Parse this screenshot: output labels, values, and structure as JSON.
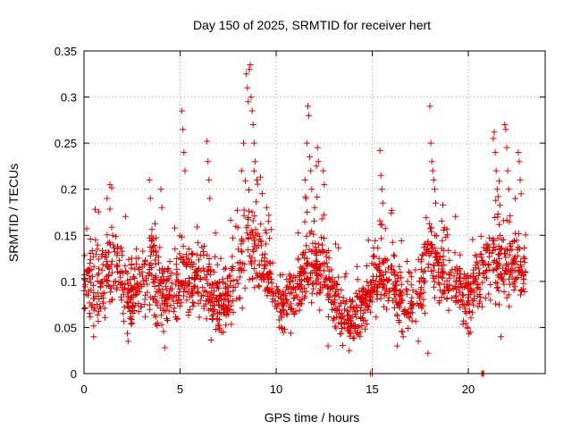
{
  "chart_data": {
    "type": "scatter",
    "title": "Day 150 of 2025, SRMTID for receiver hert",
    "xlabel": "GPS time / hours",
    "ylabel": "SRMTID / TECUs",
    "xlim": [
      0,
      24
    ],
    "ylim": [
      0,
      0.35
    ],
    "grid": true,
    "marker": "plus",
    "series_color": "#dd0000",
    "xticks": [
      {
        "v": 0,
        "label": "0"
      },
      {
        "v": 5,
        "label": "5"
      },
      {
        "v": 10,
        "label": "10"
      },
      {
        "v": 15,
        "label": "15"
      },
      {
        "v": 20,
        "label": "20"
      }
    ],
    "yticks": [
      {
        "v": 0,
        "label": "0"
      },
      {
        "v": 0.05,
        "label": "0.05"
      },
      {
        "v": 0.1,
        "label": "0.1"
      },
      {
        "v": 0.15,
        "label": "0.15"
      },
      {
        "v": 0.2,
        "label": "0.2"
      },
      {
        "v": 0.25,
        "label": "0.25"
      },
      {
        "v": 0.3,
        "label": "0.3"
      },
      {
        "v": 0.35,
        "label": "0.35"
      }
    ],
    "x_range_hours": [
      0,
      23
    ],
    "points_per_hour": 80,
    "seed": 150,
    "envelope": [
      [
        0.0,
        0.07,
        0.12
      ],
      [
        0.5,
        0.05,
        0.14
      ],
      [
        1.0,
        0.06,
        0.15
      ],
      [
        1.5,
        0.07,
        0.16
      ],
      [
        2.0,
        0.06,
        0.13
      ],
      [
        2.5,
        0.05,
        0.12
      ],
      [
        3.0,
        0.06,
        0.14
      ],
      [
        3.5,
        0.06,
        0.16
      ],
      [
        4.0,
        0.05,
        0.13
      ],
      [
        4.5,
        0.05,
        0.12
      ],
      [
        5.0,
        0.06,
        0.15
      ],
      [
        5.5,
        0.06,
        0.14
      ],
      [
        6.0,
        0.06,
        0.14
      ],
      [
        6.5,
        0.05,
        0.13
      ],
      [
        7.0,
        0.05,
        0.11
      ],
      [
        7.5,
        0.05,
        0.12
      ],
      [
        8.0,
        0.07,
        0.15
      ],
      [
        8.5,
        0.09,
        0.2
      ],
      [
        9.0,
        0.09,
        0.18
      ],
      [
        9.5,
        0.08,
        0.15
      ],
      [
        10.0,
        0.05,
        0.11
      ],
      [
        10.5,
        0.05,
        0.1
      ],
      [
        11.0,
        0.06,
        0.12
      ],
      [
        11.5,
        0.07,
        0.15
      ],
      [
        12.0,
        0.08,
        0.16
      ],
      [
        12.5,
        0.07,
        0.14
      ],
      [
        13.0,
        0.05,
        0.11
      ],
      [
        13.5,
        0.04,
        0.09
      ],
      [
        14.0,
        0.04,
        0.08
      ],
      [
        14.5,
        0.05,
        0.1
      ],
      [
        15.0,
        0.06,
        0.12
      ],
      [
        15.5,
        0.07,
        0.14
      ],
      [
        16.0,
        0.07,
        0.13
      ],
      [
        16.5,
        0.05,
        0.11
      ],
      [
        17.0,
        0.05,
        0.1
      ],
      [
        17.5,
        0.06,
        0.12
      ],
      [
        18.0,
        0.09,
        0.18
      ],
      [
        18.5,
        0.08,
        0.15
      ],
      [
        19.0,
        0.07,
        0.13
      ],
      [
        19.5,
        0.06,
        0.12
      ],
      [
        20.0,
        0.05,
        0.11
      ],
      [
        20.5,
        0.07,
        0.13
      ],
      [
        21.0,
        0.09,
        0.16
      ],
      [
        21.5,
        0.09,
        0.17
      ],
      [
        22.0,
        0.08,
        0.15
      ],
      [
        22.5,
        0.09,
        0.15
      ],
      [
        23.0,
        0.09,
        0.14
      ]
    ],
    "spikes": [
      {
        "x": 0.0,
        "y": 0.09
      },
      {
        "x": 0.6,
        "y": 0.145
      },
      {
        "x": 1.2,
        "y": 0.19
      },
      {
        "x": 1.35,
        "y": 0.205
      },
      {
        "x": 3.4,
        "y": 0.21
      },
      {
        "x": 3.45,
        "y": 0.19
      },
      {
        "x": 4.0,
        "y": 0.2
      },
      {
        "x": 4.05,
        "y": 0.18
      },
      {
        "x": 5.1,
        "y": 0.285
      },
      {
        "x": 5.15,
        "y": 0.265
      },
      {
        "x": 5.2,
        "y": 0.24
      },
      {
        "x": 5.25,
        "y": 0.22
      },
      {
        "x": 6.4,
        "y": 0.252
      },
      {
        "x": 6.45,
        "y": 0.23
      },
      {
        "x": 6.5,
        "y": 0.21
      },
      {
        "x": 6.55,
        "y": 0.19
      },
      {
        "x": 8.2,
        "y": 0.22
      },
      {
        "x": 8.3,
        "y": 0.25
      },
      {
        "x": 8.45,
        "y": 0.325
      },
      {
        "x": 8.5,
        "y": 0.31
      },
      {
        "x": 8.55,
        "y": 0.295
      },
      {
        "x": 8.6,
        "y": 0.33
      },
      {
        "x": 8.65,
        "y": 0.335
      },
      {
        "x": 8.7,
        "y": 0.3
      },
      {
        "x": 8.75,
        "y": 0.285
      },
      {
        "x": 8.8,
        "y": 0.27
      },
      {
        "x": 8.85,
        "y": 0.25
      },
      {
        "x": 8.9,
        "y": 0.23
      },
      {
        "x": 9.0,
        "y": 0.21
      },
      {
        "x": 9.5,
        "y": 0.18
      },
      {
        "x": 9.6,
        "y": 0.165
      },
      {
        "x": 11.5,
        "y": 0.21
      },
      {
        "x": 11.55,
        "y": 0.19
      },
      {
        "x": 11.6,
        "y": 0.25
      },
      {
        "x": 11.65,
        "y": 0.29
      },
      {
        "x": 11.7,
        "y": 0.28
      },
      {
        "x": 11.75,
        "y": 0.235
      },
      {
        "x": 11.8,
        "y": 0.22
      },
      {
        "x": 11.85,
        "y": 0.2
      },
      {
        "x": 12.1,
        "y": 0.225
      },
      {
        "x": 12.15,
        "y": 0.245
      },
      {
        "x": 12.2,
        "y": 0.23
      },
      {
        "x": 12.45,
        "y": 0.22
      },
      {
        "x": 12.5,
        "y": 0.205
      },
      {
        "x": 14.9,
        "y": 0.0
      },
      {
        "x": 15.0,
        "y": 0.0
      },
      {
        "x": 15.4,
        "y": 0.242
      },
      {
        "x": 15.45,
        "y": 0.215
      },
      {
        "x": 15.5,
        "y": 0.2
      },
      {
        "x": 15.55,
        "y": 0.185
      },
      {
        "x": 18.0,
        "y": 0.29
      },
      {
        "x": 18.05,
        "y": 0.25
      },
      {
        "x": 18.1,
        "y": 0.23
      },
      {
        "x": 18.15,
        "y": 0.22
      },
      {
        "x": 18.2,
        "y": 0.21
      },
      {
        "x": 18.25,
        "y": 0.2
      },
      {
        "x": 18.3,
        "y": 0.185
      },
      {
        "x": 17.9,
        "y": 0.022
      },
      {
        "x": 17.4,
        "y": 0.035
      },
      {
        "x": 20.7,
        "y": 0.0
      },
      {
        "x": 20.75,
        "y": 0.0
      },
      {
        "x": 20.8,
        "y": 0.0
      },
      {
        "x": 21.3,
        "y": 0.255
      },
      {
        "x": 21.35,
        "y": 0.262
      },
      {
        "x": 21.4,
        "y": 0.24
      },
      {
        "x": 21.45,
        "y": 0.22
      },
      {
        "x": 21.5,
        "y": 0.2
      },
      {
        "x": 21.9,
        "y": 0.27
      },
      {
        "x": 21.95,
        "y": 0.265
      },
      {
        "x": 22.0,
        "y": 0.245
      },
      {
        "x": 22.05,
        "y": 0.22
      },
      {
        "x": 22.1,
        "y": 0.2
      },
      {
        "x": 22.6,
        "y": 0.24
      },
      {
        "x": 22.65,
        "y": 0.23
      },
      {
        "x": 22.7,
        "y": 0.21
      },
      {
        "x": 22.75,
        "y": 0.195
      },
      {
        "x": 21.7,
        "y": 0.04
      },
      {
        "x": 20.1,
        "y": 0.045
      },
      {
        "x": 4.2,
        "y": 0.028
      },
      {
        "x": 12.7,
        "y": 0.03
      },
      {
        "x": 13.8,
        "y": 0.025
      },
      {
        "x": 16.3,
        "y": 0.03
      },
      {
        "x": 2.3,
        "y": 0.035
      },
      {
        "x": 0.5,
        "y": 0.04
      }
    ]
  }
}
